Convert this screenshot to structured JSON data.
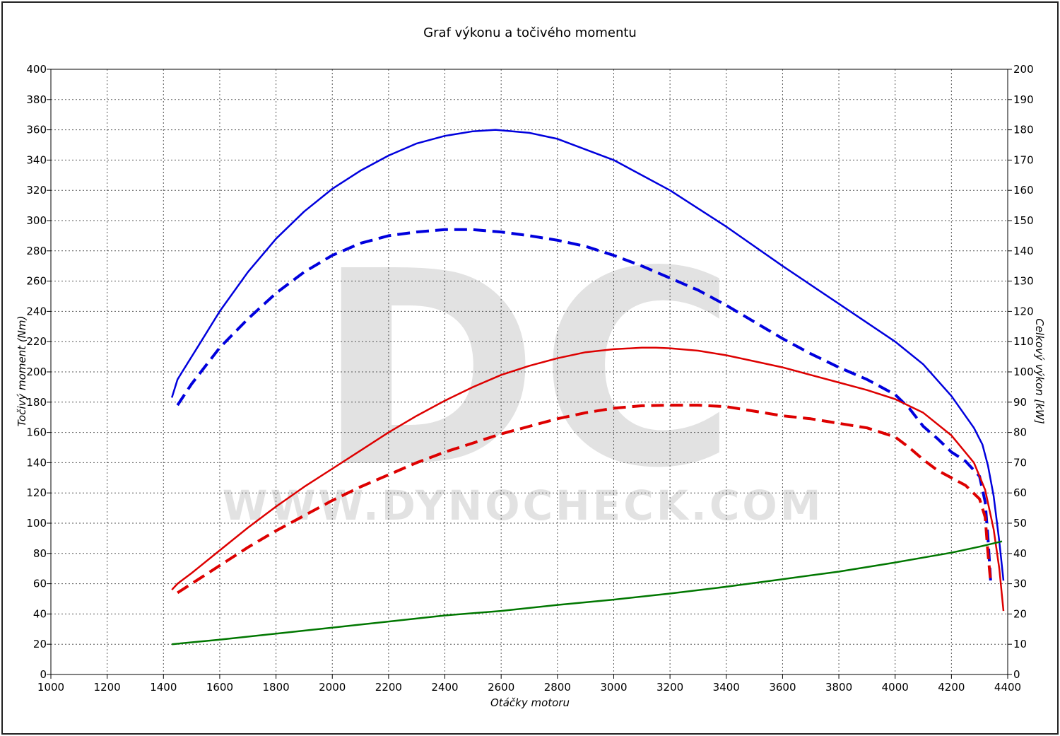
{
  "chart_data": {
    "type": "line",
    "title": "Graf výkonu a točivého momentu",
    "xlabel": "Otáčky motoru",
    "ylabel_left": "Točivý moment (Nm)",
    "ylabel_right": "Celkový výkon [kW]",
    "xlim": [
      1000,
      4400
    ],
    "ylim_left": [
      0,
      400
    ],
    "ylim_right": [
      0,
      200
    ],
    "x_ticks": [
      1000,
      1200,
      1400,
      1600,
      1800,
      2000,
      2200,
      2400,
      2600,
      2800,
      3000,
      3200,
      3400,
      3600,
      3800,
      4000,
      4200,
      4400
    ],
    "y_ticks_left": [
      0,
      20,
      40,
      60,
      80,
      100,
      120,
      140,
      160,
      180,
      200,
      220,
      240,
      260,
      280,
      300,
      320,
      340,
      360,
      380,
      400
    ],
    "y_ticks_right": [
      0,
      10,
      20,
      30,
      40,
      50,
      60,
      70,
      80,
      90,
      100,
      110,
      120,
      130,
      140,
      150,
      160,
      170,
      180,
      190,
      200
    ],
    "grid": true,
    "watermark": {
      "logo": "DC",
      "text": "WWW.DYNOCHECK.COM"
    },
    "series": [
      {
        "axis": "left",
        "color": "#0000dd",
        "style": "solid",
        "x": [
          1430,
          1450,
          1500,
          1520,
          1600,
          1700,
          1800,
          1900,
          2000,
          2100,
          2200,
          2300,
          2400,
          2500,
          2580,
          2700,
          2800,
          3000,
          3200,
          3400,
          3600,
          3800,
          4000,
          4100,
          4200,
          4280,
          4310,
          4330,
          4350,
          4370,
          4385
        ],
        "y": [
          183,
          195,
          210,
          216,
          240,
          266,
          288,
          306,
          321,
          333,
          343,
          351,
          356,
          359,
          360,
          358,
          354,
          340,
          320,
          296,
          270,
          245,
          220,
          205,
          184,
          163,
          152,
          138,
          118,
          88,
          62
        ]
      },
      {
        "axis": "left",
        "color": "#0000dd",
        "style": "dashed",
        "x": [
          1450,
          1500,
          1600,
          1700,
          1800,
          1900,
          2000,
          2100,
          2200,
          2300,
          2400,
          2500,
          2600,
          2700,
          2800,
          2900,
          3000,
          3100,
          3200,
          3300,
          3400,
          3500,
          3600,
          3700,
          3800,
          3900,
          4000,
          4050,
          4100,
          4150,
          4200,
          4250,
          4300,
          4320,
          4330,
          4340
        ],
        "y": [
          178,
          192,
          216,
          235,
          252,
          266,
          277,
          285,
          290,
          292.5,
          294,
          294,
          292.5,
          290,
          287,
          283,
          277,
          270,
          262,
          254,
          244,
          233,
          222,
          212,
          203,
          195,
          185,
          176,
          164,
          156,
          147,
          141,
          131,
          114,
          90,
          60
        ]
      },
      {
        "axis": "right",
        "color": "#dd0000",
        "style": "solid",
        "x": [
          1430,
          1450,
          1500,
          1520,
          1600,
          1700,
          1800,
          1900,
          2000,
          2100,
          2200,
          2300,
          2400,
          2500,
          2600,
          2700,
          2800,
          2900,
          3000,
          3100,
          3150,
          3200,
          3300,
          3400,
          3500,
          3600,
          3700,
          3800,
          3900,
          4000,
          4100,
          4200,
          4280,
          4320,
          4350,
          4370,
          4385
        ],
        "y": [
          28,
          30,
          33.5,
          35,
          41,
          48.5,
          55.5,
          62,
          68,
          74,
          80,
          85.5,
          90.5,
          95,
          99,
          102,
          104.5,
          106.5,
          107.5,
          108,
          108,
          107.8,
          107,
          105.5,
          103.5,
          101.5,
          99,
          96.5,
          94,
          91,
          86.5,
          79,
          70,
          61,
          48,
          35,
          21
        ]
      },
      {
        "axis": "right",
        "color": "#dd0000",
        "style": "dashed",
        "x": [
          1450,
          1500,
          1600,
          1700,
          1800,
          1900,
          2000,
          2100,
          2200,
          2300,
          2400,
          2500,
          2600,
          2700,
          2800,
          2900,
          3000,
          3100,
          3200,
          3300,
          3400,
          3500,
          3600,
          3700,
          3800,
          3900,
          4000,
          4050,
          4100,
          4150,
          4200,
          4250,
          4300,
          4320,
          4330,
          4340
        ],
        "y": [
          27,
          30,
          36,
          42,
          47.5,
          52.5,
          57.5,
          62,
          66,
          70,
          73.5,
          76.5,
          79.5,
          82,
          84.5,
          86.5,
          88,
          88.8,
          89,
          89,
          88.5,
          87,
          85.5,
          84.5,
          83,
          81.5,
          78.5,
          75,
          71,
          67.5,
          65,
          62.5,
          58,
          52,
          40,
          30
        ]
      },
      {
        "axis": "left",
        "color": "#007700",
        "style": "solid",
        "x": [
          1430,
          1600,
          1800,
          2000,
          2200,
          2400,
          2600,
          2800,
          3000,
          3200,
          3400,
          3600,
          3800,
          4000,
          4200,
          4300,
          4380
        ],
        "y": [
          20,
          23,
          27,
          31,
          35,
          39,
          42,
          46,
          49.5,
          53.5,
          58,
          63,
          68,
          74,
          80.5,
          84.5,
          88
        ]
      }
    ]
  }
}
